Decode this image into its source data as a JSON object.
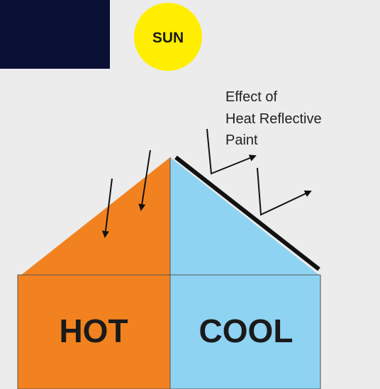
{
  "sun": {
    "label": "SUN"
  },
  "annotation": {
    "lines": [
      "Effect of",
      "Heat Reflective",
      "Paint"
    ]
  },
  "house": {
    "left_label": "HOT",
    "right_label": "COOL"
  }
}
